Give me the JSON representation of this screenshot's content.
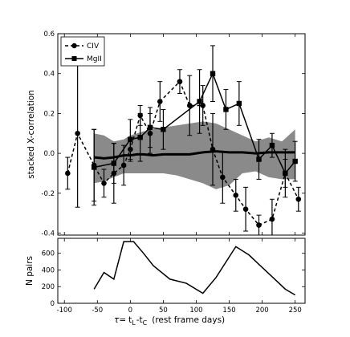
{
  "chart_data": [
    {
      "type": "line",
      "ylabel": "stacked X-correlation",
      "xlim": [
        -110,
        265
      ],
      "ylim": [
        -0.41,
        0.6
      ],
      "yticks": [
        -0.4,
        -0.2,
        0.0,
        0.2,
        0.4,
        0.6
      ],
      "ytick_labels": [
        "-0.4",
        "-0.2",
        "0.0",
        "0.2",
        "0.4",
        "0.6"
      ],
      "legend_position": "top-left",
      "band": {
        "x": [
          -55,
          -40,
          -25,
          -10,
          0,
          10,
          20,
          35,
          50,
          70,
          90,
          110,
          130,
          150,
          170,
          190,
          210,
          230,
          250
        ],
        "upper": [
          0.1,
          0.09,
          0.06,
          0.07,
          0.09,
          0.1,
          0.11,
          0.12,
          0.13,
          0.14,
          0.15,
          0.16,
          0.15,
          0.12,
          0.09,
          0.06,
          0.08,
          0.06,
          0.12
        ],
        "lower": [
          -0.15,
          -0.14,
          -0.12,
          -0.1,
          -0.1,
          -0.1,
          -0.1,
          -0.1,
          -0.1,
          -0.11,
          -0.13,
          -0.15,
          -0.18,
          -0.16,
          -0.1,
          -0.09,
          -0.12,
          -0.13,
          -0.13
        ]
      },
      "mean_line": {
        "x": [
          -55,
          -40,
          -25,
          -10,
          0,
          10,
          20,
          35,
          50,
          70,
          90,
          110,
          130,
          150,
          170,
          190,
          210,
          230,
          250
        ],
        "y": [
          -0.02,
          -0.025,
          -0.02,
          -0.01,
          -0.01,
          -0.005,
          -0.005,
          -0.01,
          -0.005,
          -0.005,
          -0.005,
          0.005,
          0.01,
          0.005,
          0.005,
          0.0,
          0.005,
          0.005,
          0.005
        ]
      },
      "series": [
        {
          "name": "CIV",
          "style": "dashed",
          "marker": "circle",
          "x": [
            -95,
            -80,
            -55,
            -40,
            -25,
            -10,
            0,
            15,
            30,
            45,
            75,
            90,
            110,
            125,
            140,
            160,
            175,
            195,
            215,
            235,
            255
          ],
          "y": [
            -0.1,
            0.1,
            -0.06,
            -0.15,
            -0.1,
            -0.06,
            0.02,
            0.19,
            0.1,
            0.26,
            0.36,
            0.24,
            0.24,
            0.02,
            -0.12,
            -0.21,
            -0.28,
            -0.36,
            -0.33,
            -0.1,
            -0.23
          ],
          "err": [
            0.08,
            0.37,
            0.18,
            0.07,
            0.15,
            0.1,
            0.06,
            0.05,
            0.1,
            0.1,
            0.06,
            0.15,
            0.1,
            0.18,
            0.13,
            0.08,
            0.11,
            0.05,
            0.1,
            0.07,
            0.06
          ]
        },
        {
          "name": "MgII",
          "style": "solid",
          "marker": "square",
          "x": [
            -55,
            -25,
            0,
            15,
            30,
            50,
            105,
            125,
            145,
            165,
            195,
            215,
            235,
            250
          ],
          "y": [
            -0.07,
            -0.05,
            0.07,
            0.08,
            0.13,
            0.12,
            0.26,
            0.4,
            0.22,
            0.25,
            -0.03,
            0.04,
            -0.1,
            -0.04
          ],
          "err": [
            0.19,
            0.1,
            0.1,
            0.12,
            0.1,
            0.1,
            0.16,
            0.14,
            0.1,
            0.11,
            0.1,
            0.06,
            0.12,
            0.1
          ]
        }
      ]
    },
    {
      "type": "line",
      "xlabel": "τ= tL -tC  (rest frame days)",
      "ylabel": "N pairs",
      "xlim": [
        -110,
        265
      ],
      "ylim": [
        0,
        780
      ],
      "xticks": [
        -100,
        -50,
        0,
        50,
        100,
        150,
        200,
        250
      ],
      "xtick_labels": [
        "-100",
        "-50",
        "0",
        "50",
        "100",
        "150",
        "200",
        "250"
      ],
      "yticks": [
        0,
        200,
        400,
        600
      ],
      "ytick_labels": [
        "0",
        "200",
        "400",
        "600"
      ],
      "series": [
        {
          "x": [
            -55,
            -40,
            -25,
            -10,
            5,
            20,
            35,
            60,
            85,
            110,
            130,
            160,
            180,
            200,
            215,
            235,
            250
          ],
          "y": [
            170,
            370,
            290,
            740,
            740,
            600,
            450,
            290,
            240,
            120,
            310,
            680,
            580,
            430,
            320,
            170,
            100
          ]
        }
      ]
    }
  ],
  "legend": {
    "civ_label": "CIV",
    "mgii_label": "MgII"
  },
  "labels": {
    "top_ylabel": "stacked X-correlation",
    "bottom_ylabel": "N pairs",
    "xlabel_tau": "τ=",
    "xlabel_tl": "t",
    "xlabel_l": "L",
    "xlabel_dash": "-t",
    "xlabel_c": "C",
    "xlabel_rest": "(rest frame days)"
  },
  "colors": {
    "band": "#8a8a8a",
    "line": "#000000"
  }
}
